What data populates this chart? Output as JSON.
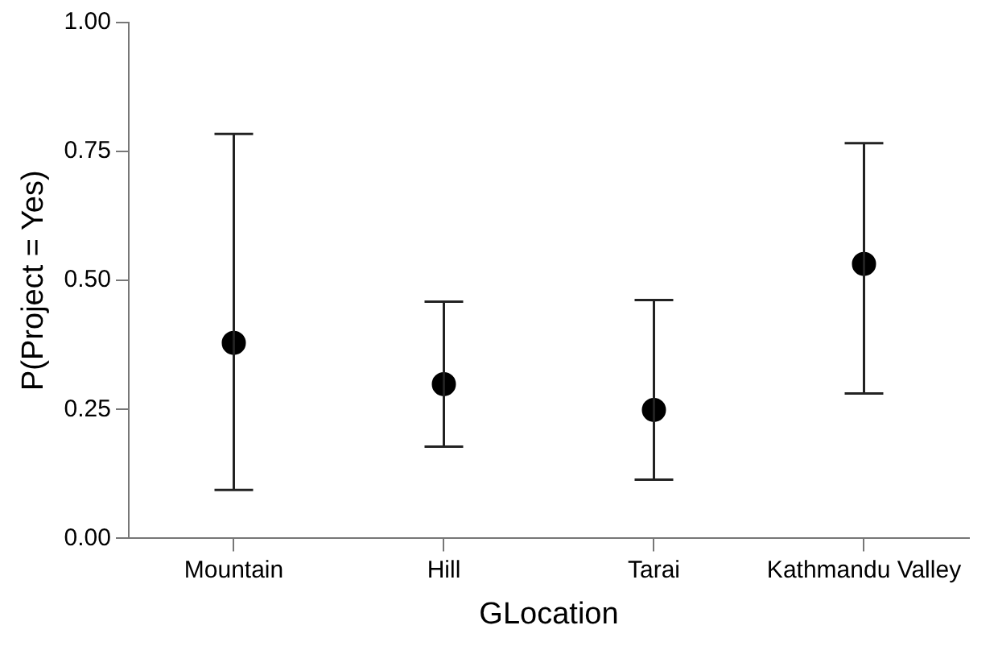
{
  "chart_data": {
    "type": "scatter",
    "xlabel": "GLocation",
    "ylabel": "P(Project = Yes)",
    "categories": [
      "Mountain",
      "Hill",
      "Tarai",
      "Kathmandu Valley"
    ],
    "values": [
      0.379,
      0.299,
      0.249,
      0.532
    ],
    "errors": [
      [
        0.094,
        0.784
      ],
      [
        0.178,
        0.459
      ],
      [
        0.114,
        0.462
      ],
      [
        0.281,
        0.766
      ]
    ],
    "color": "#000000",
    "marker": "circle",
    "ylim": [
      0,
      1
    ],
    "yticks": [
      {
        "value": 0,
        "label": "0.00"
      },
      {
        "value": 0.25,
        "label": "0.25"
      },
      {
        "value": 0.5,
        "label": "0.50"
      },
      {
        "value": 0.75,
        "label": "0.75"
      },
      {
        "value": 1,
        "label": "1.00"
      }
    ],
    "grid": false,
    "legend": false
  }
}
